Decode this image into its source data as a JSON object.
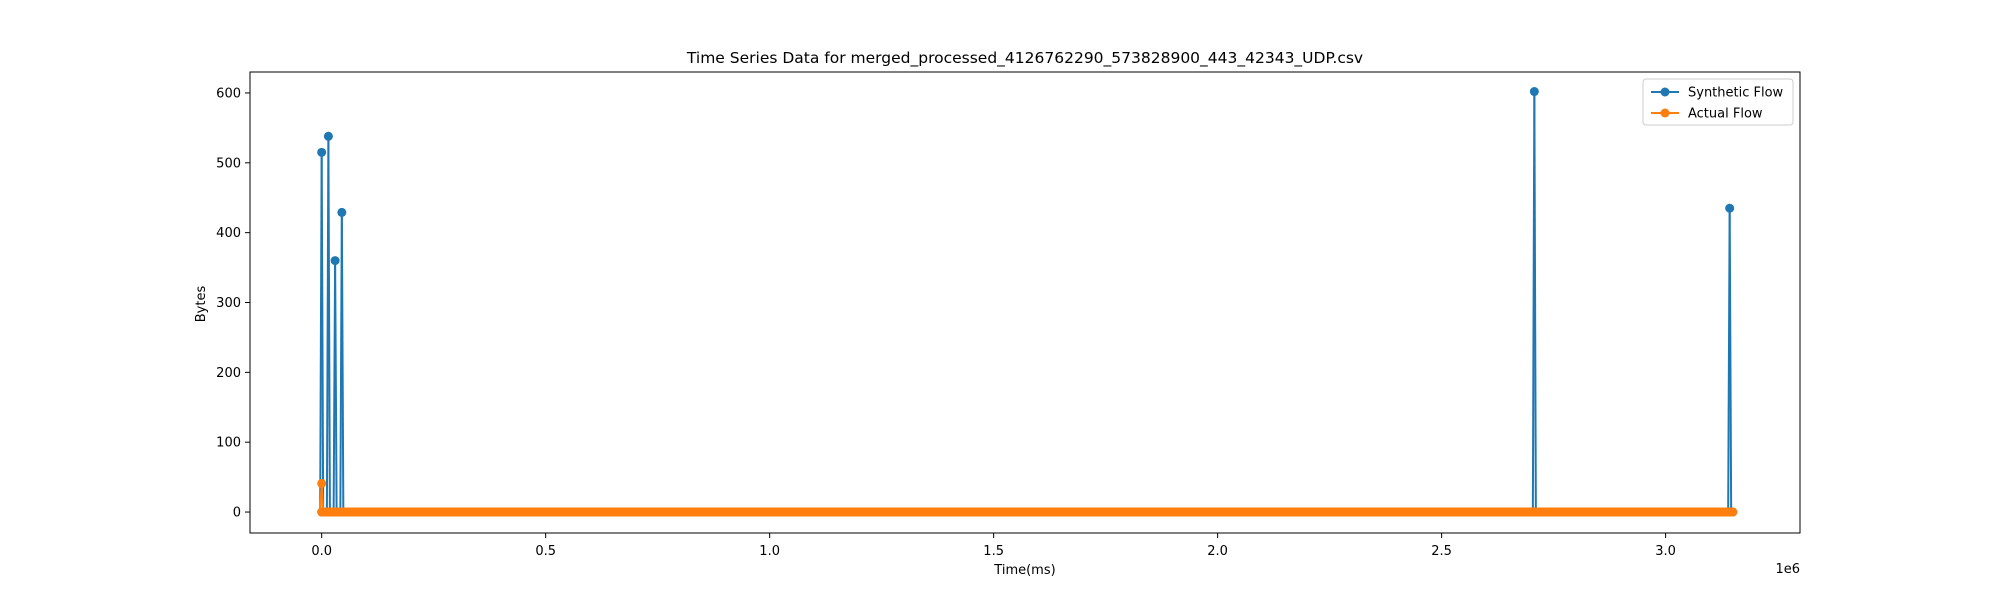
{
  "chart_data": {
    "type": "line",
    "title": "Time Series Data for merged_processed_4126762290_573828900_443_42343_UDP.csv",
    "xlabel": "Time(ms)",
    "ylabel": "Bytes",
    "x_offset_label": "1e6",
    "xlim": [
      -0.16,
      3.3
    ],
    "ylim": [
      -30,
      630
    ],
    "x_scale": 1000000,
    "x_ticks": [
      0.0,
      0.5,
      1.0,
      1.5,
      2.0,
      2.5,
      3.0
    ],
    "x_tick_labels": [
      "0.0",
      "0.5",
      "1.0",
      "1.5",
      "2.0",
      "2.5",
      "3.0"
    ],
    "y_ticks": [
      0,
      100,
      200,
      300,
      400,
      500,
      600
    ],
    "y_tick_labels": [
      "0",
      "100",
      "200",
      "300",
      "400",
      "500",
      "600"
    ],
    "grid": false,
    "legend_position": "top-right",
    "series": [
      {
        "name": "Synthetic Flow",
        "color": "#1f77b4",
        "spikes": [
          {
            "x": 0,
            "y": 515
          },
          {
            "x": 15000,
            "y": 538
          },
          {
            "x": 30000,
            "y": 360
          },
          {
            "x": 45000,
            "y": 429
          },
          {
            "x": 2707000,
            "y": 602
          },
          {
            "x": 3143000,
            "y": 435
          }
        ],
        "baseline_y": 0,
        "x_range": [
          0,
          3150000
        ]
      },
      {
        "name": "Actual Flow",
        "color": "#ff7f0e",
        "spikes": [
          {
            "x": 0,
            "y": 41
          }
        ],
        "baseline_y": 0,
        "x_range": [
          0,
          3150000
        ]
      }
    ]
  }
}
